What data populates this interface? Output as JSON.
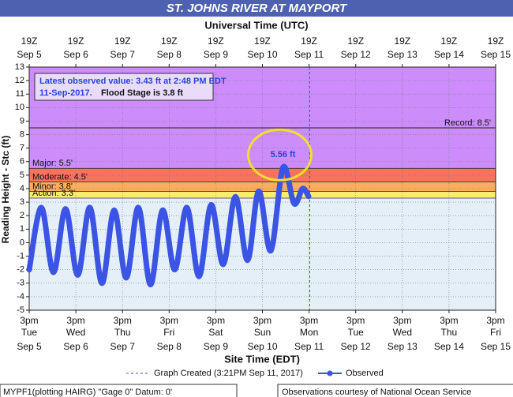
{
  "chart_data": {
    "type": "line",
    "title": "ST. JOHNS RIVER AT MAYPORT",
    "top_axis_title": "Universal Time (UTC)",
    "xlabel": "Site Time (EDT)",
    "ylabel": "Reading Height - Stc (ft)",
    "x": [
      0.0,
      0.26,
      0.52,
      0.78,
      1.04,
      1.3,
      1.56,
      1.82,
      2.08,
      2.34,
      2.6,
      2.86,
      3.12,
      3.38,
      3.64,
      3.9,
      4.16,
      4.42,
      4.68,
      4.92,
      5.18,
      5.44,
      5.68,
      5.86,
      5.99
    ],
    "series": [
      {
        "name": "Observed",
        "color": "#3b54e3",
        "values": [
          -2.0,
          2.6,
          -2.2,
          2.5,
          -2.4,
          2.6,
          -3.0,
          2.4,
          -2.6,
          2.6,
          -3.1,
          2.4,
          -2.0,
          2.6,
          -2.5,
          2.8,
          -1.6,
          3.4,
          -1.3,
          3.8,
          -0.6,
          5.56,
          2.9,
          4.0,
          3.43
        ]
      }
    ],
    "xlim": [
      0,
      10
    ],
    "ylim": [
      -5,
      13
    ],
    "yticks": [
      -5,
      -4,
      -3,
      -2,
      -1,
      0,
      1,
      2,
      3,
      4,
      5,
      6,
      7,
      8,
      9,
      10,
      11,
      12,
      13
    ],
    "xticks": [
      {
        "value": 0,
        "label": "3pm"
      },
      {
        "value": 1,
        "label": "3pm"
      },
      {
        "value": 2,
        "label": "3pm"
      },
      {
        "value": 3,
        "label": "3pm"
      },
      {
        "value": 4,
        "label": "3pm"
      },
      {
        "value": 5,
        "label": "3pm"
      },
      {
        "value": 6,
        "label": "3pm"
      },
      {
        "value": 7,
        "label": "3pm"
      },
      {
        "value": 8,
        "label": "3pm"
      },
      {
        "value": 9,
        "label": "3pm"
      },
      {
        "value": 10,
        "label": "3pm"
      }
    ],
    "xtick_days": [
      "Tue",
      "Wed",
      "Thu",
      "Fri",
      "Sat",
      "Sun",
      "Mon",
      "Tue",
      "Wed",
      "Thu",
      "Fri"
    ],
    "xtick_dates": [
      "Sep 5",
      "Sep 6",
      "Sep 7",
      "Sep 8",
      "Sep 9",
      "Sep 10",
      "Sep 11",
      "Sep 12",
      "Sep 13",
      "Sep 14",
      "Sep 15"
    ],
    "x2ticks": [
      {
        "value": 0,
        "label": "19Z"
      },
      {
        "value": 1,
        "label": "19Z"
      },
      {
        "value": 2,
        "label": "19Z"
      },
      {
        "value": 3,
        "label": "19Z"
      },
      {
        "value": 4,
        "label": "19Z"
      },
      {
        "value": 5,
        "label": "19Z"
      },
      {
        "value": 6,
        "label": "19Z"
      },
      {
        "value": 7,
        "label": "19Z"
      },
      {
        "value": 8,
        "label": "19Z"
      },
      {
        "value": 9,
        "label": "19Z"
      },
      {
        "value": 10,
        "label": "19Z"
      }
    ],
    "x2tick_dates": [
      "Sep 5",
      "Sep 6",
      "Sep 7",
      "Sep 8",
      "Sep 9",
      "Sep 10",
      "Sep 11",
      "Sep 12",
      "Sep 13",
      "Sep 14",
      "Sep 15"
    ],
    "grid": true,
    "flood_stages": [
      {
        "label": "Major: 5.5'",
        "value": 5.5,
        "color": "#cc8dfb"
      },
      {
        "label": "Moderate: 4.5'",
        "value": 4.5,
        "color": "#f7735e"
      },
      {
        "label": "Minor: 3.8'",
        "value": 3.8,
        "color": "#fdad5c"
      },
      {
        "label": "Action: 3.3'",
        "value": 3.3,
        "color": "#f8ec72"
      }
    ],
    "below_color": "#e4eff8",
    "record": {
      "label": "Record: 8.5'",
      "value": 8.5
    },
    "latest_box": {
      "line1": "Latest observed value: 3.43 ft at 2:48 PM EDT",
      "line2_date": "11-Sep-2017.",
      "line2_flood": "Flood Stage is 3.8 ft"
    },
    "peak_label": "5.56 ft",
    "graph_created": {
      "label": "Graph Created (3:21PM Sep 11, 2017)",
      "x": 6.015
    },
    "footer_left": "MYPF1(plotting HAIRG) \"Gage 0\" Datum: 0'",
    "footer_right": "Observations courtesy of National Ocean Service"
  }
}
